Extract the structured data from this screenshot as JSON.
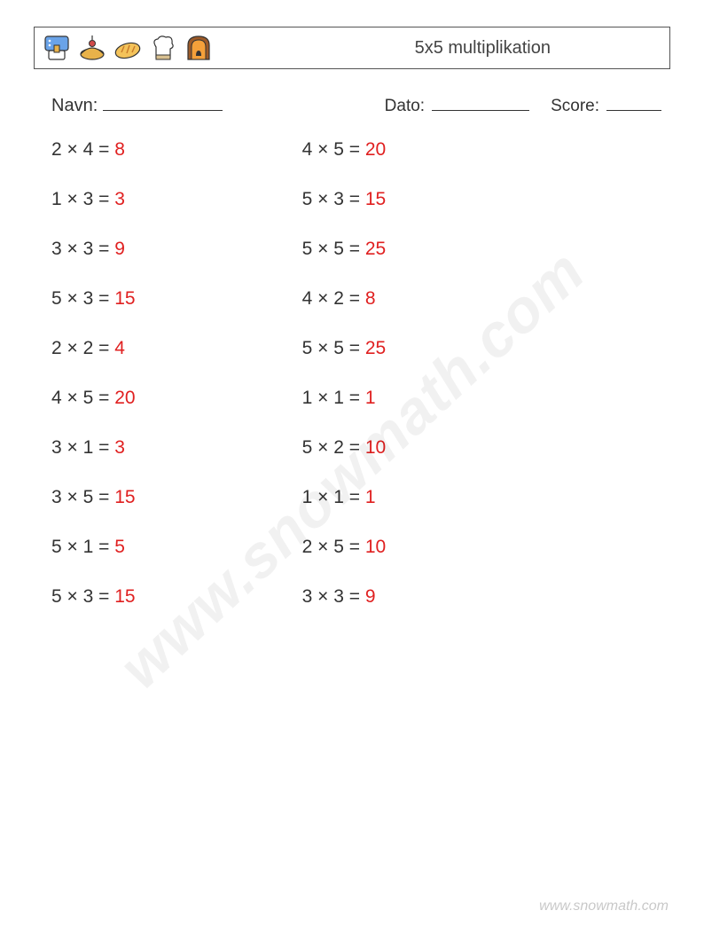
{
  "header": {
    "title": "5x5 multiplikation",
    "icons": [
      {
        "name": "mixer-icon",
        "colors": {
          "a": "#6aa3e8",
          "b": "#e8b24a",
          "c": "#ffffff",
          "d": "#333333"
        }
      },
      {
        "name": "pie-icon",
        "colors": {
          "a": "#e8b24a",
          "b": "#d14a4a",
          "c": "#333333"
        }
      },
      {
        "name": "bread-icon",
        "colors": {
          "a": "#f4c35a",
          "b": "#c87a2a",
          "c": "#333333"
        }
      },
      {
        "name": "chefhat-icon",
        "colors": {
          "a": "#ffffff",
          "b": "#d8c090",
          "c": "#333333"
        }
      },
      {
        "name": "oven-icon",
        "colors": {
          "a": "#f4a03a",
          "b": "#9c5a28",
          "c": "#333333"
        }
      }
    ]
  },
  "info": {
    "name_label": "Navn:",
    "date_label": "Dato:",
    "score_label": "Score:"
  },
  "columns": [
    [
      {
        "a": 2,
        "b": 4,
        "ans": 8
      },
      {
        "a": 1,
        "b": 3,
        "ans": 3
      },
      {
        "a": 3,
        "b": 3,
        "ans": 9
      },
      {
        "a": 5,
        "b": 3,
        "ans": 15
      },
      {
        "a": 2,
        "b": 2,
        "ans": 4
      },
      {
        "a": 4,
        "b": 5,
        "ans": 20
      },
      {
        "a": 3,
        "b": 1,
        "ans": 3
      },
      {
        "a": 3,
        "b": 5,
        "ans": 15
      },
      {
        "a": 5,
        "b": 1,
        "ans": 5
      },
      {
        "a": 5,
        "b": 3,
        "ans": 15
      }
    ],
    [
      {
        "a": 4,
        "b": 5,
        "ans": 20
      },
      {
        "a": 5,
        "b": 3,
        "ans": 15
      },
      {
        "a": 5,
        "b": 5,
        "ans": 25
      },
      {
        "a": 4,
        "b": 2,
        "ans": 8
      },
      {
        "a": 5,
        "b": 5,
        "ans": 25
      },
      {
        "a": 1,
        "b": 1,
        "ans": 1
      },
      {
        "a": 5,
        "b": 2,
        "ans": 10
      },
      {
        "a": 1,
        "b": 1,
        "ans": 1
      },
      {
        "a": 2,
        "b": 5,
        "ans": 10
      },
      {
        "a": 3,
        "b": 3,
        "ans": 9
      }
    ]
  ],
  "style": {
    "answer_color": "#e02020",
    "problem_fontsize": 21,
    "title_fontsize": 20,
    "info_fontsize": 20,
    "background": "#ffffff",
    "text_color": "#333333",
    "border_color": "#555555",
    "row_gap": 32,
    "col_gap": 188
  },
  "watermark": "www.snowmath.com",
  "footer": "www.snowmath.com"
}
